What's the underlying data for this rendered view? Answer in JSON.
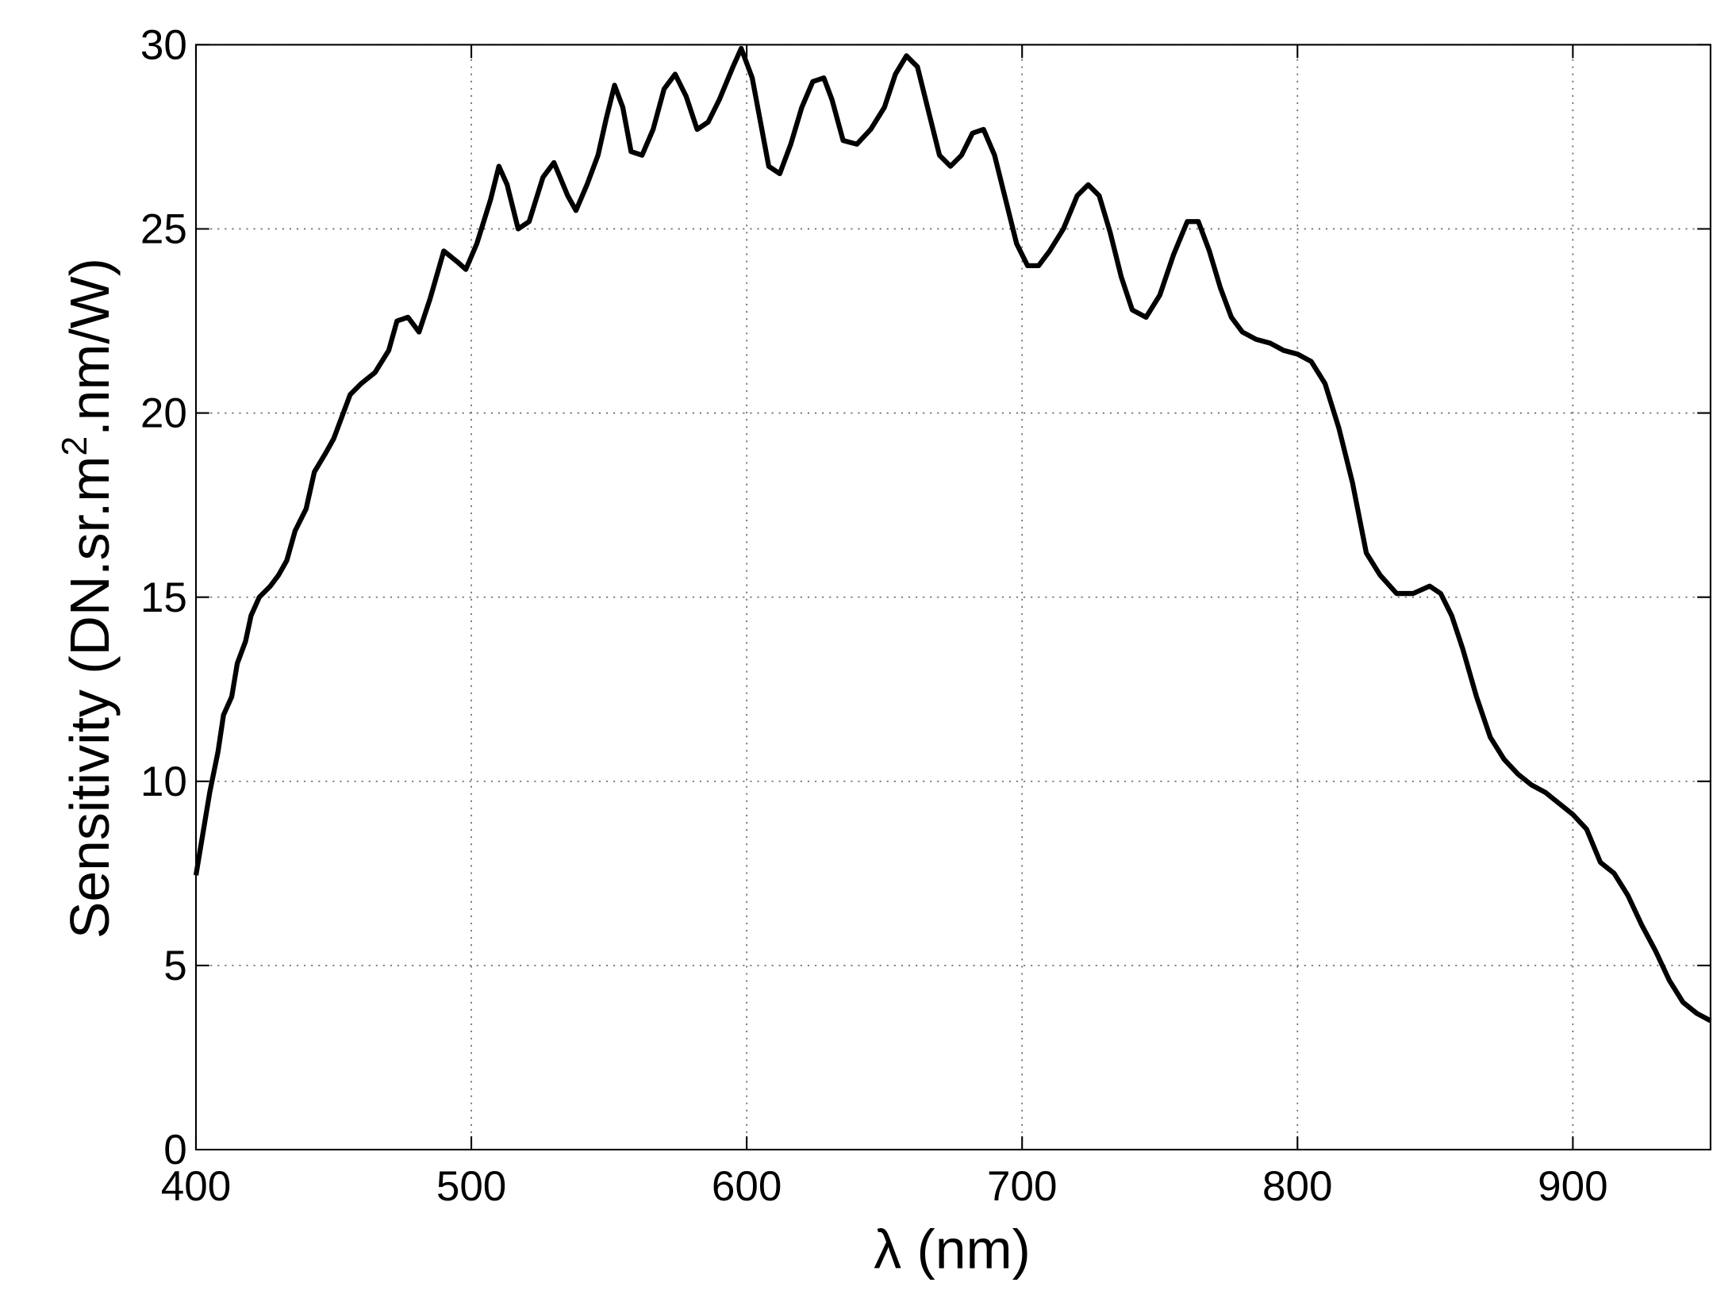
{
  "chart_data": {
    "type": "line",
    "xlabel": "λ (nm)",
    "ylabel": [
      "Sensitivity (DN.sr.m",
      "2",
      ".nm/W)"
    ],
    "x": [
      400,
      403,
      405,
      408,
      410,
      413,
      415,
      418,
      420,
      423,
      427,
      430,
      433,
      436,
      440,
      443,
      447,
      450,
      453,
      456,
      460,
      465,
      470,
      473,
      477,
      481,
      485,
      490,
      495,
      498,
      502,
      507,
      510,
      513,
      517,
      521,
      526,
      530,
      535,
      538,
      542,
      546,
      549,
      552,
      555,
      558,
      562,
      566,
      570,
      574,
      578,
      582,
      586,
      590,
      595,
      598,
      602,
      605,
      608,
      612,
      616,
      620,
      624,
      628,
      631,
      635,
      640,
      645,
      650,
      654,
      658,
      662,
      666,
      670,
      674,
      678,
      682,
      686,
      690,
      694,
      698,
      702,
      706,
      710,
      715,
      720,
      724,
      728,
      732,
      736,
      740,
      745,
      750,
      755,
      760,
      764,
      768,
      772,
      776,
      780,
      785,
      790,
      795,
      800,
      805,
      810,
      815,
      820,
      825,
      830,
      836,
      842,
      848,
      852,
      856,
      860,
      865,
      870,
      875,
      880,
      885,
      890,
      895,
      900,
      905,
      910,
      915,
      920,
      925,
      930,
      935,
      940,
      945,
      950
    ],
    "series": [
      {
        "name": "Sensitivity",
        "color": "#000000",
        "values": [
          7.45,
          8.8,
          9.7,
          10.8,
          11.8,
          12.3,
          13.2,
          13.8,
          14.5,
          15.0,
          15.3,
          15.6,
          16.0,
          16.8,
          17.4,
          18.4,
          18.9,
          19.3,
          19.9,
          20.5,
          20.8,
          21.1,
          21.7,
          22.5,
          22.6,
          22.2,
          23.1,
          24.4,
          24.1,
          23.9,
          24.6,
          25.8,
          26.7,
          26.2,
          25.0,
          25.2,
          26.4,
          26.8,
          25.9,
          25.5,
          26.2,
          27.0,
          28.0,
          28.9,
          28.3,
          27.1,
          27.0,
          27.7,
          28.8,
          29.2,
          28.6,
          27.7,
          27.9,
          28.5,
          29.4,
          29.9,
          29.1,
          27.9,
          26.7,
          26.5,
          27.3,
          28.3,
          29.0,
          29.1,
          28.5,
          27.4,
          27.3,
          27.7,
          28.3,
          29.2,
          29.7,
          29.4,
          28.2,
          27.0,
          26.7,
          27.0,
          27.6,
          27.7,
          27.0,
          25.8,
          24.6,
          24.0,
          24.0,
          24.4,
          25.0,
          25.9,
          26.2,
          25.9,
          24.9,
          23.7,
          22.8,
          22.6,
          23.2,
          24.3,
          25.2,
          25.2,
          24.4,
          23.4,
          22.6,
          22.2,
          22.0,
          21.9,
          21.7,
          21.6,
          21.4,
          20.8,
          19.6,
          18.1,
          16.2,
          15.6,
          15.1,
          15.1,
          15.3,
          15.1,
          14.5,
          13.6,
          12.3,
          11.2,
          10.6,
          10.2,
          9.9,
          9.7,
          9.4,
          9.1,
          8.7,
          7.8,
          7.5,
          6.9,
          6.1,
          5.4,
          4.6,
          4.0,
          3.7,
          3.5
        ]
      }
    ],
    "xlim": [
      400,
      950
    ],
    "ylim": [
      0,
      30
    ],
    "xticks": [
      400,
      500,
      600,
      700,
      800,
      900
    ],
    "yticks": [
      0,
      5,
      10,
      15,
      20,
      25,
      30
    ],
    "grid": true
  }
}
